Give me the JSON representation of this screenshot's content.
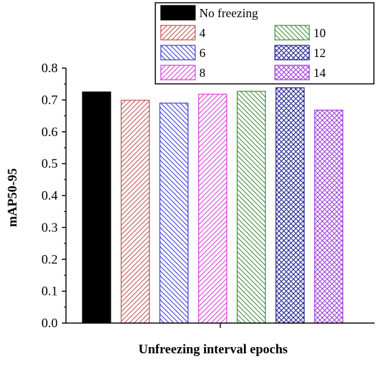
{
  "chart_data": {
    "type": "bar",
    "title": "",
    "xlabel": "Unfreezing interval epochs",
    "ylabel": "mAP50-95",
    "ylim": [
      0.0,
      0.8
    ],
    "yticks": [
      "0.0",
      "0.1",
      "0.2",
      "0.3",
      "0.4",
      "0.5",
      "0.6",
      "0.7",
      "0.8"
    ],
    "grid": false,
    "legend_position": "top-right",
    "series": [
      {
        "name": "No freezing",
        "value": 0.725,
        "color": "#000000",
        "pattern": "solid"
      },
      {
        "name": "4",
        "value": 0.699,
        "color": "#c0504d",
        "pattern": "diagonal-up"
      },
      {
        "name": "6",
        "value": 0.69,
        "color": "#3a3ad6",
        "pattern": "diagonal-down"
      },
      {
        "name": "8",
        "value": 0.718,
        "color": "#d63ad6",
        "pattern": "diagonal-up"
      },
      {
        "name": "10",
        "value": 0.727,
        "color": "#3a8a3a",
        "pattern": "diagonal-down"
      },
      {
        "name": "12",
        "value": 0.738,
        "color": "#1a1a8a",
        "pattern": "crosshatch"
      },
      {
        "name": "14",
        "value": 0.668,
        "color": "#9b3ad6",
        "pattern": "crosshatch"
      }
    ]
  }
}
